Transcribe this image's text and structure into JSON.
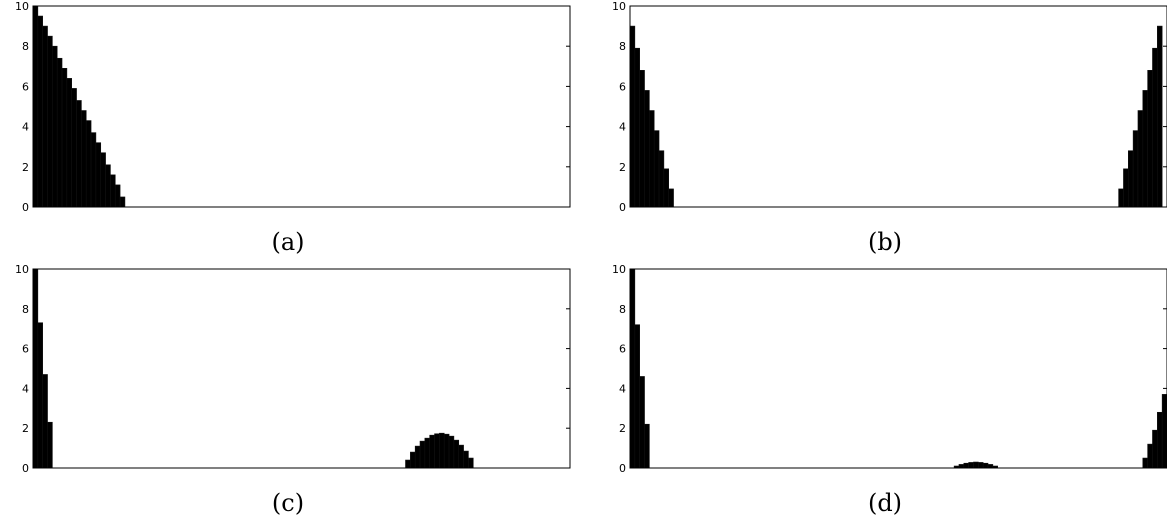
{
  "chart_data": [
    {
      "type": "bar",
      "panel": "a",
      "caption": "(a)",
      "ylim": [
        0,
        10
      ],
      "yticks": [
        "0",
        "2",
        "4",
        "6",
        "8",
        "10"
      ],
      "grid": false,
      "x_range": [
        0,
        110
      ],
      "bars": [
        {
          "x": 0,
          "v": 10.0
        },
        {
          "x": 1,
          "v": 9.5
        },
        {
          "x": 2,
          "v": 9.0
        },
        {
          "x": 3,
          "v": 8.5
        },
        {
          "x": 4,
          "v": 8.0
        },
        {
          "x": 5,
          "v": 7.4
        },
        {
          "x": 6,
          "v": 6.9
        },
        {
          "x": 7,
          "v": 6.4
        },
        {
          "x": 8,
          "v": 5.9
        },
        {
          "x": 9,
          "v": 5.3
        },
        {
          "x": 10,
          "v": 4.8
        },
        {
          "x": 11,
          "v": 4.3
        },
        {
          "x": 12,
          "v": 3.7
        },
        {
          "x": 13,
          "v": 3.2
        },
        {
          "x": 14,
          "v": 2.7
        },
        {
          "x": 15,
          "v": 2.1
        },
        {
          "x": 16,
          "v": 1.6
        },
        {
          "x": 17,
          "v": 1.1
        },
        {
          "x": 18,
          "v": 0.5
        }
      ]
    },
    {
      "type": "bar",
      "panel": "b",
      "caption": "(b)",
      "ylim": [
        0,
        10
      ],
      "yticks": [
        "0",
        "2",
        "4",
        "6",
        "8",
        "10"
      ],
      "grid": false,
      "x_range": [
        0,
        110
      ],
      "bars": [
        {
          "x": 0,
          "v": 9.0
        },
        {
          "x": 1,
          "v": 7.9
        },
        {
          "x": 2,
          "v": 6.8
        },
        {
          "x": 3,
          "v": 5.8
        },
        {
          "x": 4,
          "v": 4.8
        },
        {
          "x": 5,
          "v": 3.8
        },
        {
          "x": 6,
          "v": 2.8
        },
        {
          "x": 7,
          "v": 1.9
        },
        {
          "x": 8,
          "v": 0.9
        },
        {
          "x": 101,
          "v": 0.9
        },
        {
          "x": 102,
          "v": 1.9
        },
        {
          "x": 103,
          "v": 2.8
        },
        {
          "x": 104,
          "v": 3.8
        },
        {
          "x": 105,
          "v": 4.8
        },
        {
          "x": 106,
          "v": 5.8
        },
        {
          "x": 107,
          "v": 6.8
        },
        {
          "x": 108,
          "v": 7.9
        },
        {
          "x": 109,
          "v": 9.0
        }
      ]
    },
    {
      "type": "bar",
      "panel": "c",
      "caption": "(c)",
      "ylim": [
        0,
        10
      ],
      "yticks": [
        "0",
        "2",
        "4",
        "6",
        "8",
        "10"
      ],
      "grid": false,
      "x_range": [
        0,
        110
      ],
      "bars": [
        {
          "x": 0,
          "v": 10.0
        },
        {
          "x": 1,
          "v": 7.3
        },
        {
          "x": 2,
          "v": 4.7
        },
        {
          "x": 3,
          "v": 2.3
        },
        {
          "x": 77,
          "v": 0.4
        },
        {
          "x": 78,
          "v": 0.8
        },
        {
          "x": 79,
          "v": 1.1
        },
        {
          "x": 80,
          "v": 1.35
        },
        {
          "x": 81,
          "v": 1.5
        },
        {
          "x": 82,
          "v": 1.65
        },
        {
          "x": 83,
          "v": 1.72
        },
        {
          "x": 84,
          "v": 1.75
        },
        {
          "x": 85,
          "v": 1.7
        },
        {
          "x": 86,
          "v": 1.6
        },
        {
          "x": 87,
          "v": 1.4
        },
        {
          "x": 88,
          "v": 1.15
        },
        {
          "x": 89,
          "v": 0.85
        },
        {
          "x": 90,
          "v": 0.5
        }
      ]
    },
    {
      "type": "bar",
      "panel": "d",
      "caption": "(d)",
      "ylim": [
        0,
        10
      ],
      "yticks": [
        "0",
        "2",
        "4",
        "6",
        "8",
        "10"
      ],
      "grid": false,
      "x_range": [
        0,
        110
      ],
      "bars": [
        {
          "x": 0,
          "v": 10.0
        },
        {
          "x": 1,
          "v": 7.2
        },
        {
          "x": 2,
          "v": 4.6
        },
        {
          "x": 3,
          "v": 2.2
        },
        {
          "x": 67,
          "v": 0.1
        },
        {
          "x": 68,
          "v": 0.18
        },
        {
          "x": 69,
          "v": 0.24
        },
        {
          "x": 70,
          "v": 0.28
        },
        {
          "x": 71,
          "v": 0.3
        },
        {
          "x": 72,
          "v": 0.28
        },
        {
          "x": 73,
          "v": 0.24
        },
        {
          "x": 74,
          "v": 0.18
        },
        {
          "x": 75,
          "v": 0.1
        },
        {
          "x": 106,
          "v": 0.5
        },
        {
          "x": 107,
          "v": 1.2
        },
        {
          "x": 108,
          "v": 1.9
        },
        {
          "x": 109,
          "v": 2.8
        },
        {
          "x": 110,
          "v": 3.7
        }
      ]
    }
  ]
}
